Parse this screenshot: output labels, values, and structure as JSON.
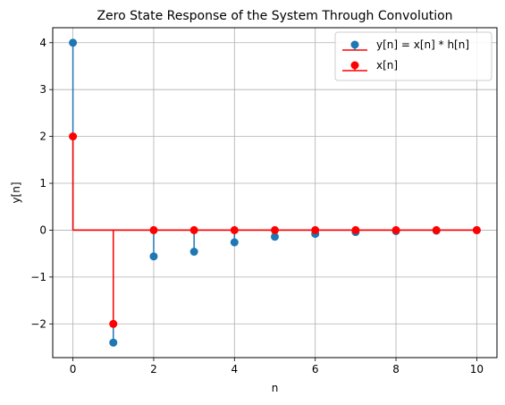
{
  "chart_data": {
    "type": "stem",
    "title": "Zero State Response of the System Through Convolution",
    "xlabel": "n",
    "ylabel": "y[n]",
    "xlim": [
      -0.5,
      10.5
    ],
    "ylim": [
      -2.72,
      4.32
    ],
    "xticks": [
      0,
      2,
      4,
      6,
      8,
      10
    ],
    "xtick_labels": [
      "0",
      "2",
      "4",
      "6",
      "8",
      "10"
    ],
    "yticks": [
      -2,
      -1,
      0,
      1,
      2,
      3,
      4
    ],
    "ytick_labels": [
      "−2",
      "−1",
      "0",
      "1",
      "2",
      "3",
      "4"
    ],
    "grid": true,
    "legend_position": "top-right",
    "series": [
      {
        "name": "y[n] = x[n] * h[n]",
        "color": "#1f77b4",
        "baseline_color": "#ff0000",
        "x": [
          0,
          1,
          2,
          3,
          4,
          5,
          6,
          7,
          8,
          9,
          10
        ],
        "values": [
          4,
          -2.4,
          -0.56,
          -0.46,
          -0.26,
          -0.14,
          -0.08,
          -0.04,
          -0.02,
          -0.01,
          0
        ]
      },
      {
        "name": "x[n]",
        "color": "#ff0000",
        "baseline_color": "#ff0000",
        "x": [
          0,
          1,
          2,
          3,
          4,
          5,
          6,
          7,
          8,
          9,
          10
        ],
        "values": [
          2,
          -2,
          0,
          0,
          0,
          0,
          0,
          0,
          0,
          0,
          0
        ]
      }
    ]
  }
}
